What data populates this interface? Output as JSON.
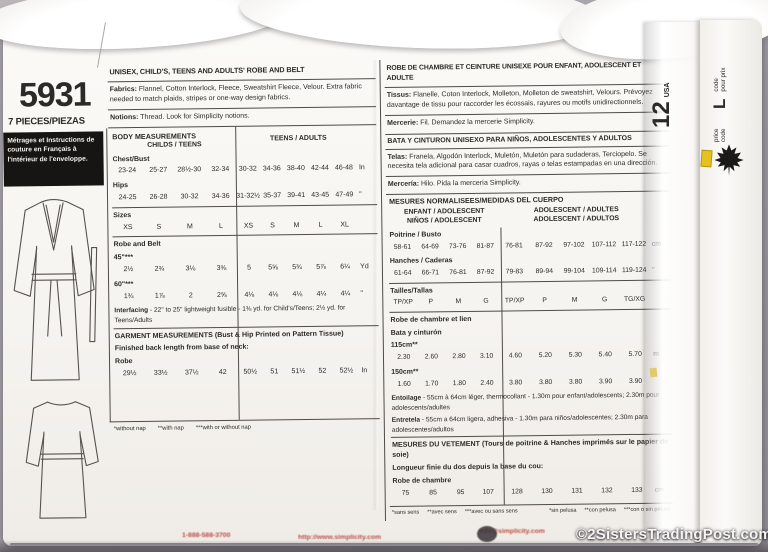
{
  "colors": {
    "paper": "#f6f4f0",
    "ink": "#2b2a27",
    "accent_red": "#b5392f",
    "background": "#a9a5ac",
    "sticker_yellow": "#e5c223"
  },
  "icons": {
    "maple_leaf": "canada-maple-leaf-icon"
  },
  "left_panel": {
    "pattern_number": "5931",
    "pieces": "7 PIECES/PIEZAS",
    "french_note": "Métrages et Instructions de couture en Français à l'intérieur de l'enveloppe."
  },
  "english": {
    "title": "UNISEX, CHILD'S, TEENS AND ADULTS' ROBE AND BELT",
    "fabrics_label": "Fabrics:",
    "fabrics_text": " Flannel, Cotton Interlock, Fleece, Sweatshirt Fleece, Velour. Extra fabric needed to match plaids, stripes or one-way design fabrics.",
    "notions_label": "Notions:",
    "notions_text": " Thread. Look for Simplicity notions.",
    "table": {
      "items": [
        {
          "type": "head",
          "title": "BODY MEASUREMENTS",
          "group_left": "CHILDS / TEENS",
          "group_right": "TEENS / ADULTS"
        },
        {
          "type": "row",
          "label": "Chest/Bust",
          "left": [
            "23-24",
            "25-27",
            "28½-30",
            "32-34"
          ],
          "right": [
            "30-32",
            "34-36",
            "38-40",
            "42-44",
            "46-48"
          ],
          "unit": "In"
        },
        {
          "type": "row",
          "label": "Hips",
          "left": [
            "24-25",
            "26-28",
            "30-32",
            "34-36"
          ],
          "right": [
            "31-32½",
            "35-37",
            "39-41",
            "43-45",
            "47-49"
          ],
          "unit": "\""
        },
        {
          "type": "rule"
        },
        {
          "type": "row",
          "label": "Sizes",
          "left": [
            "XS",
            "S",
            "M",
            "L"
          ],
          "right": [
            "XS",
            "S",
            "M",
            "L",
            "XL"
          ],
          "unit": ""
        },
        {
          "type": "rule"
        },
        {
          "type": "section",
          "lines": [
            "Robe and Belt"
          ]
        },
        {
          "type": "row",
          "label": "45\"***",
          "left": [
            "2½",
            "2¾",
            "3⅛",
            "3⅜"
          ],
          "right": [
            "5",
            "5⅝",
            "5¾",
            "5⅞",
            "6¼"
          ],
          "unit": "Yd"
        },
        {
          "type": "row",
          "label": "60\"***",
          "left": [
            "1¾",
            "1⅞",
            "2",
            "2⅝"
          ],
          "right": [
            "4⅛",
            "4⅛",
            "4⅛",
            "4¼",
            "4¼"
          ],
          "unit": "\""
        },
        {
          "type": "text",
          "bold": "Interfacing",
          "rest": " - 22\" to 25\" lightweight fusible - 1⅜ yd. for Child's/Teens; 2½ yd. for Teens/Adults"
        },
        {
          "type": "rule"
        },
        {
          "type": "header",
          "text": "GARMENT MEASUREMENTS (Bust & Hip Printed on Pattern Tissue)"
        },
        {
          "type": "section",
          "lines": [
            "Finished back length from base of neck:"
          ]
        },
        {
          "type": "section",
          "lines": [
            "Robe"
          ]
        },
        {
          "type": "row",
          "label": "",
          "left": [
            "29½",
            "33½",
            "37½",
            "42"
          ],
          "right": [
            "50½",
            "51",
            "51½",
            "52",
            "52½"
          ],
          "unit": "In"
        },
        {
          "type": "spacer",
          "h": 40
        }
      ]
    },
    "footnotes": [
      "*without nap",
      "**with nap",
      "***with or without nap"
    ]
  },
  "french": {
    "title": "ROBE DE CHAMBRE ET CEINTURE UNISEXE POUR ENFANT, ADOLESCENT ET ADULTE",
    "tissus_label": "Tissus:",
    "tissus_text": " Flanelle, Coton Interlock, Molleton, Molleton de sweatshirt, Velours. Prévoyez davantage de tissu pour raccorder les écossais, rayures ou motifs unidirectionnels.",
    "mercerie_label": "Mercerie:",
    "mercerie_text": " Fil. Demandez la mercerie Simplicity.",
    "spanish_title": "BATA Y CINTURON UNISEXO PARA NIÑOS, ADOLESCENTES Y ADULTOS",
    "telas_label": "Telas:",
    "telas_text": " Franela, Algodón Interlock, Muletón, Muletón para sudaderas, Terciopelo. Se necesita tela adicional para casar cuadros, rayas o telas estampadas en una dirección.",
    "merceria_label": "Mercería:",
    "merceria_text": " Hilo. Pida la mercería Simplicity.",
    "table": {
      "items": [
        {
          "type": "head",
          "title": "MESURES NORMALISEES/MEDIDAS DEL CUERPO",
          "group_left": [
            "ENFANT / ADOLESCENT",
            "NIÑOS / ADOLESCENT"
          ],
          "group_right": [
            "ADOLESCENT / ADULTES",
            "ADOLESCENT / ADULTOS"
          ]
        },
        {
          "type": "row",
          "label": "Poitrine / Busto",
          "left": [
            "58-61",
            "64-69",
            "73-76",
            "81-87"
          ],
          "right": [
            "76-81",
            "87-92",
            "97-102",
            "107-112",
            "117-122"
          ],
          "unit": "cm"
        },
        {
          "type": "row",
          "label": "Hanches / Caderas",
          "left": [
            "61-64",
            "66-71",
            "76-81",
            "87-92"
          ],
          "right": [
            "79-83",
            "89-94",
            "99-104",
            "109-114",
            "119-124"
          ],
          "unit": "\""
        },
        {
          "type": "rule"
        },
        {
          "type": "row",
          "label": "Tailles/Tallas",
          "left": [
            "TP/XP",
            "P",
            "M",
            "G"
          ],
          "right": [
            "TP/XP",
            "P",
            "M",
            "G",
            "TG/XG"
          ],
          "unit": ""
        },
        {
          "type": "rule"
        },
        {
          "type": "section",
          "lines": [
            "Robe de chambre et lien",
            "Bata y cinturón"
          ]
        },
        {
          "type": "row",
          "label": "115cm**",
          "left": [
            "2.30",
            "2.60",
            "2.80",
            "3.10"
          ],
          "right": [
            "4.60",
            "5.20",
            "5.30",
            "5.40",
            "5.70"
          ],
          "unit": "m"
        },
        {
          "type": "row",
          "label": "150cm**",
          "left": [
            "1.60",
            "1.70",
            "1.80",
            "2.40"
          ],
          "right": [
            "3.80",
            "3.80",
            "3.80",
            "3.90",
            "3.90"
          ],
          "unit": ""
        },
        {
          "type": "text",
          "bold": "Entoilage",
          "rest": " - 55cm à 64cm léger, thermocollant - 1.30m pour enfant/adolescents; 2.30m pour adolescents/adultes"
        },
        {
          "type": "text",
          "bold": "Entretela",
          "rest": " - 55cm a 64cm ligera, adhesiva - 1.30m para niños/adolescentes; 2.30m para adolescentes/adultos"
        },
        {
          "type": "rule"
        },
        {
          "type": "header",
          "text": "MESURES DU VETEMENT (Tours de poitrine & Hanches imprimés sur le papier de soie)"
        },
        {
          "type": "section",
          "lines": [
            "Longueur finie du dos depuis la base du cou:"
          ]
        },
        {
          "type": "section",
          "lines": [
            "Robe de chambre"
          ]
        },
        {
          "type": "row",
          "label": "",
          "left": [
            "75",
            "85",
            "95",
            "107"
          ],
          "right": [
            "128",
            "130",
            "131",
            "132",
            "133"
          ],
          "unit": "cm"
        },
        {
          "type": "spacer",
          "h": 6
        }
      ]
    },
    "footnotes_fr": [
      "*sans sens",
      "**avec sens",
      "***avec ou sans sens"
    ],
    "footnotes_es": [
      "*sin pelusa",
      "**con pelusa",
      "***con o sin pelusa"
    ]
  },
  "side_strip": {
    "number": "12",
    "usa": "USA",
    "size_letter": "L",
    "price_code": "price code",
    "code_pour_prix": "code pour prix"
  },
  "footer": {
    "phone": "1-888-588-3700",
    "website": "http://www.simplicity.com",
    "email": "info@simplicity.com",
    "watermark": "©2SistersTradingPost.com©"
  }
}
